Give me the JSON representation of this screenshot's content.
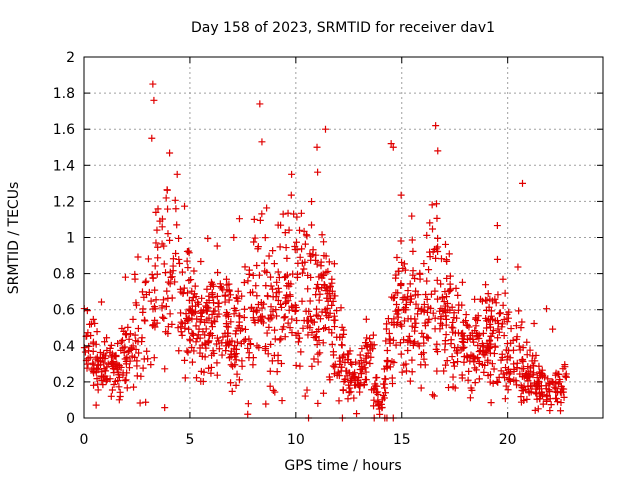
{
  "chart_data": {
    "type": "scatter",
    "title": "Day 158 of 2023, SRMTID for receiver dav1",
    "xlabel": "GPS time / hours",
    "ylabel": "SRMTID / TECUs",
    "xlim": [
      0,
      24.5
    ],
    "ylim": [
      0,
      2
    ],
    "xticks": [
      0,
      5,
      10,
      15,
      20
    ],
    "xtick_labels": [
      "0",
      "5",
      "10",
      "15",
      "20"
    ],
    "yticks": [
      0,
      0.2,
      0.4,
      0.6,
      0.8,
      1,
      1.2,
      1.4,
      1.6,
      1.8,
      2
    ],
    "ytick_labels": [
      "0",
      "0.2",
      "0.4",
      "0.6",
      "0.8",
      "1",
      "1.2",
      "1.4",
      "1.6",
      "1.8",
      "2"
    ],
    "grid": true,
    "marker": "+",
    "color": "#e00000",
    "series": [
      {
        "name": "SRMTID",
        "envelope": {
          "x": [
            0.0,
            0.5,
            1.0,
            1.5,
            2.0,
            2.5,
            3.0,
            3.5,
            4.0,
            4.5,
            5.0,
            5.5,
            6.0,
            6.5,
            7.0,
            7.5,
            8.0,
            8.5,
            9.0,
            9.5,
            10.0,
            10.5,
            11.0,
            11.5,
            12.0,
            12.5,
            13.0,
            13.5,
            14.0,
            14.5,
            15.0,
            15.5,
            16.0,
            16.5,
            17.0,
            17.5,
            18.0,
            18.5,
            19.0,
            19.5,
            20.0,
            20.5,
            21.0,
            21.5,
            22.0,
            22.5,
            22.8
          ],
          "center": [
            0.4,
            0.35,
            0.25,
            0.28,
            0.32,
            0.45,
            0.6,
            0.75,
            0.85,
            0.75,
            0.55,
            0.5,
            0.52,
            0.55,
            0.5,
            0.45,
            0.65,
            0.62,
            0.55,
            0.65,
            0.72,
            0.7,
            0.68,
            0.65,
            0.4,
            0.25,
            0.2,
            0.4,
            0.0,
            0.55,
            0.6,
            0.55,
            0.5,
            0.7,
            0.6,
            0.45,
            0.4,
            0.35,
            0.5,
            0.45,
            0.35,
            0.3,
            0.25,
            0.2,
            0.12,
            0.18,
            0.2
          ],
          "spread": [
            0.12,
            0.1,
            0.07,
            0.08,
            0.1,
            0.15,
            0.22,
            0.28,
            0.3,
            0.25,
            0.15,
            0.12,
            0.15,
            0.18,
            0.15,
            0.12,
            0.25,
            0.22,
            0.18,
            0.22,
            0.25,
            0.24,
            0.22,
            0.2,
            0.12,
            0.08,
            0.06,
            0.12,
            0.0,
            0.2,
            0.22,
            0.2,
            0.15,
            0.25,
            0.2,
            0.14,
            0.12,
            0.12,
            0.16,
            0.14,
            0.14,
            0.12,
            0.1,
            0.06,
            0.05,
            0.06,
            0.07
          ]
        },
        "peaks": [
          {
            "x": 3.25,
            "y": 1.85
          },
          {
            "x": 3.3,
            "y": 1.76
          },
          {
            "x": 3.2,
            "y": 1.55
          },
          {
            "x": 8.3,
            "y": 1.74
          },
          {
            "x": 8.4,
            "y": 1.53
          },
          {
            "x": 9.8,
            "y": 1.35
          },
          {
            "x": 11.0,
            "y": 1.5
          },
          {
            "x": 11.4,
            "y": 1.6
          },
          {
            "x": 14.5,
            "y": 1.52
          },
          {
            "x": 14.6,
            "y": 1.5
          },
          {
            "x": 16.6,
            "y": 1.62
          },
          {
            "x": 16.7,
            "y": 1.48
          },
          {
            "x": 20.7,
            "y": 1.3
          },
          {
            "x": 4.4,
            "y": 1.35
          }
        ],
        "zero_points": [
          10.6,
          12.2,
          13.7,
          14.2,
          14.3,
          14.6
        ]
      }
    ]
  }
}
